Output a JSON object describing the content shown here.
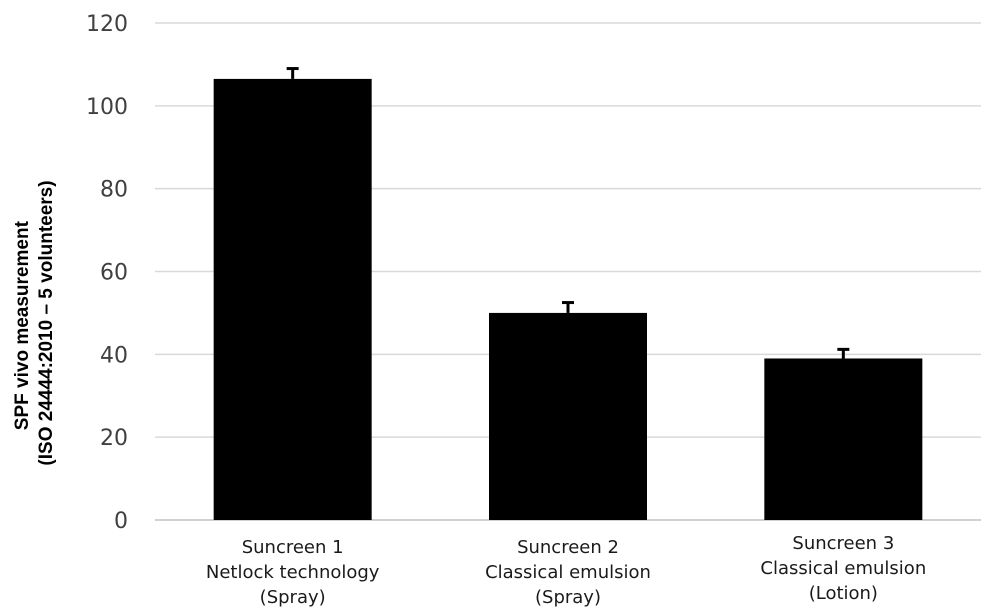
{
  "chart_data": {
    "type": "bar",
    "categories": [
      [
        "Suncreen 1",
        "Netlock technology",
        "(Spray)"
      ],
      [
        "Suncreen 2",
        "Classical emulsion",
        "(Spray)"
      ],
      [
        "Suncreen 3",
        "Classical emulsion",
        "(Lotion)"
      ]
    ],
    "values": [
      106.5,
      50,
      39
    ],
    "error_bars": [
      2.5,
      2.5,
      2.2
    ],
    "ylabel": [
      "SPF vivo measurement",
      "(ISO 24444:2010 – 5 volunteers)"
    ],
    "xlabel": "",
    "ylim": [
      0,
      120
    ],
    "yticks": [
      0,
      20,
      40,
      60,
      80,
      100,
      120
    ],
    "grid": true,
    "legend": "none",
    "colors": {
      "bar": "#000000",
      "grid": "#d9d9d9",
      "tick_text": "#404040"
    }
  }
}
